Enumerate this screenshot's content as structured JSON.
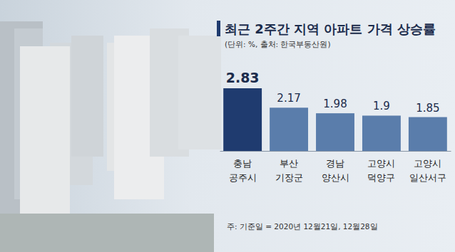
{
  "chart_data": {
    "type": "bar",
    "title": "최근 2주간 지역 아파트 가격 상승률",
    "subtitle": "(단위: %, 출처: 한국부동산원)",
    "categories": [
      "충남\n공주시",
      "부산\n기장군",
      "경남\n양산시",
      "고양시\n덕양구",
      "고양시\n일산서구"
    ],
    "values": [
      2.83,
      2.17,
      1.98,
      1.9,
      1.85
    ],
    "colors": [
      "#1f3b6f",
      "#5a7dab",
      "#5a7dab",
      "#5a7dab",
      "#5a7dab"
    ],
    "ylim": [
      0.7,
      3.0
    ],
    "data_labels": true,
    "tick_labels": "x",
    "grid": false,
    "annotations": [
      "주: 기준일 = 2020년 12월21일, 12월28일"
    ]
  }
}
